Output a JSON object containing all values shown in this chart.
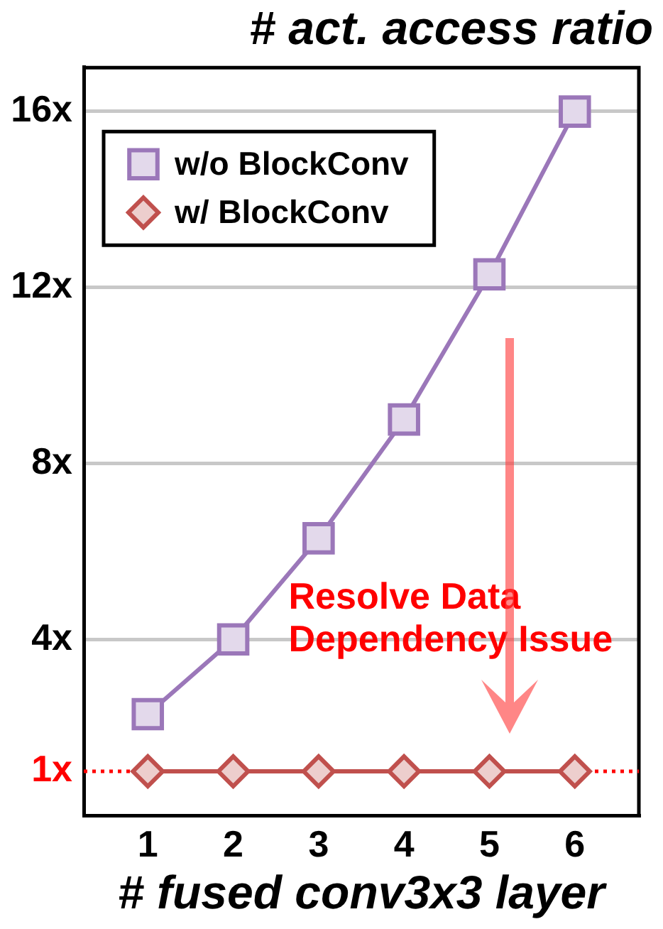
{
  "chart_data": {
    "type": "line",
    "ylabel": "# act. access ratio",
    "xlabel": "# fused conv3x3 layer",
    "x": [
      1,
      2,
      3,
      4,
      5,
      6
    ],
    "series": [
      {
        "name": "w/o BlockConv",
        "color": "#9b77b9",
        "marker": "square",
        "values": [
          2.3,
          4,
          6.3,
          9,
          12.3,
          16
        ]
      },
      {
        "name": "w/ BlockConv",
        "color": "#c0504d",
        "marker": "diamond",
        "values": [
          1,
          1,
          1,
          1,
          1,
          1
        ]
      }
    ],
    "xlim": [
      0.25,
      6.75
    ],
    "xticks": [
      1,
      2,
      3,
      4,
      5,
      6
    ],
    "ylim": [
      0,
      17
    ],
    "yticks": [
      {
        "value": 4,
        "label": "4x"
      },
      {
        "value": 8,
        "label": "8x"
      },
      {
        "value": 12,
        "label": "12x"
      },
      {
        "value": 16,
        "label": "16x"
      }
    ],
    "ref_lines": [
      {
        "axis": "y",
        "value": 1,
        "label": "1x",
        "color": "#ff0000",
        "line_style": "dotted"
      }
    ],
    "annotations": [
      "Resolve Data Dependency Issue"
    ],
    "grid": "y",
    "legend": "top left"
  }
}
